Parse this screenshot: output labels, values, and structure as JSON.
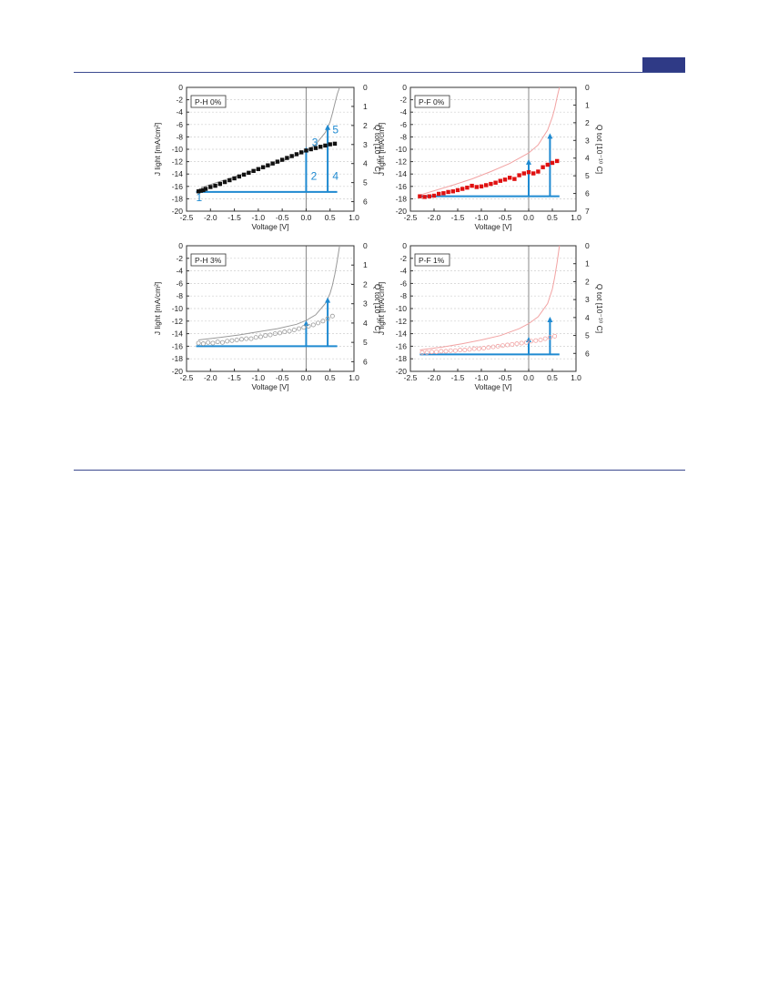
{
  "page": {
    "rule_color": "#3b4a8f",
    "tab_color": "#2f3a86"
  },
  "colors": {
    "axis": "#333333",
    "grid": "#cfcfcf",
    "zero_line": "#888888",
    "arrow": "#1f8ad1",
    "gray_curve": "#9a9a9a",
    "red_curve": "#f2a3a3",
    "black_marker": "#111111",
    "red_marker": "#e01010",
    "open_marker": "#9a9a9a"
  },
  "chart_data": [
    {
      "type": "scatter",
      "panel_label": "P-H 0%",
      "xlabel": "Voltage [V]",
      "ylabel": "J light [mA/cm²]",
      "y2label": "Q tot [10⁻¹⁰ C]",
      "xlim": [
        -2.5,
        1.0
      ],
      "ylim": [
        -20,
        0
      ],
      "y2lim": [
        6.5,
        0
      ],
      "x_ticks": [
        "-2.5",
        "-2.0",
        "-1.5",
        "-1.0",
        "-0.5",
        "0.0",
        "0.5",
        "1.0"
      ],
      "y_ticks": [
        "0",
        "-2",
        "-4",
        "-6",
        "-8",
        "-10",
        "-12",
        "-14",
        "-16",
        "-18",
        "-20"
      ],
      "y2_ticks": [
        "0",
        "1",
        "2",
        "3",
        "4",
        "5",
        "6"
      ],
      "marker": "filled-square",
      "marker_color": "#111111",
      "curve_color": "#9a9a9a",
      "points": {
        "x": [
          -2.25,
          -2.2,
          -2.15,
          -2.1,
          -2.0,
          -1.9,
          -1.8,
          -1.7,
          -1.6,
          -1.5,
          -1.4,
          -1.3,
          -1.2,
          -1.1,
          -1.0,
          -0.9,
          -0.8,
          -0.7,
          -0.6,
          -0.5,
          -0.4,
          -0.3,
          -0.2,
          -0.1,
          0.0,
          0.1,
          0.2,
          0.3,
          0.4,
          0.5,
          0.6
        ],
        "y": [
          -16.8,
          -16.7,
          -16.6,
          -16.4,
          -16.1,
          -15.9,
          -15.6,
          -15.3,
          -15.0,
          -14.7,
          -14.4,
          -14.1,
          -13.8,
          -13.5,
          -13.2,
          -12.9,
          -12.6,
          -12.3,
          -12.0,
          -11.7,
          -11.4,
          -11.1,
          -10.8,
          -10.5,
          -10.2,
          -10.0,
          -9.8,
          -9.6,
          -9.4,
          -9.2,
          -9.1
        ]
      },
      "curve": {
        "x": [
          -2.2,
          -1.8,
          -1.4,
          -1.0,
          -0.6,
          -0.3,
          0.0,
          0.2,
          0.4,
          0.5,
          0.55,
          0.6,
          0.65,
          0.7
        ],
        "y": [
          -16.2,
          -15.2,
          -14.2,
          -13.2,
          -12.2,
          -11.3,
          -10.3,
          -9.2,
          -7.3,
          -5.6,
          -4.2,
          -2.6,
          -1.1,
          0.0
        ]
      },
      "baseline_J": -16.9,
      "arrows": [
        {
          "x": 0.0,
          "y_to": -9.6
        },
        {
          "x": 0.45,
          "y_to": -6.0
        }
      ],
      "annotations": [
        {
          "text": "1",
          "x": -2.3,
          "y": -18.4
        },
        {
          "text": "2",
          "x": 0.1,
          "y": -14.9
        },
        {
          "text": "3",
          "x": 0.12,
          "y": -9.5
        },
        {
          "text": "4",
          "x": 0.55,
          "y": -14.9
        },
        {
          "text": "5",
          "x": 0.55,
          "y": -7.4
        }
      ]
    },
    {
      "type": "scatter",
      "panel_label": "P-F 0%",
      "xlabel": "Voltage [V]",
      "ylabel": "J light [mA/cm²]",
      "y2label": "Q tot [10⁻¹⁰ C]",
      "xlim": [
        -2.5,
        1.0
      ],
      "ylim": [
        -20,
        0
      ],
      "y2lim": [
        7,
        0
      ],
      "x_ticks": [
        "-2.5",
        "-2.0",
        "-1.5",
        "-1.0",
        "-0.5",
        "0.0",
        "0.5",
        "1.0"
      ],
      "y_ticks": [
        "0",
        "-2",
        "-4",
        "-6",
        "-8",
        "-10",
        "-12",
        "-14",
        "-16",
        "-18",
        "-20"
      ],
      "y2_ticks": [
        "0",
        "1",
        "2",
        "3",
        "4",
        "5",
        "6",
        "7"
      ],
      "marker": "filled-square",
      "marker_color": "#e01010",
      "curve_color": "#f2a3a3",
      "points": {
        "x": [
          -2.3,
          -2.2,
          -2.1,
          -2.0,
          -1.9,
          -1.8,
          -1.7,
          -1.6,
          -1.5,
          -1.4,
          -1.3,
          -1.2,
          -1.1,
          -1.0,
          -0.9,
          -0.8,
          -0.7,
          -0.6,
          -0.5,
          -0.4,
          -0.3,
          -0.2,
          -0.1,
          0.0,
          0.1,
          0.2,
          0.3,
          0.4,
          0.5,
          0.6
        ],
        "y": [
          -17.6,
          -17.7,
          -17.6,
          -17.5,
          -17.2,
          -17.1,
          -16.9,
          -16.8,
          -16.6,
          -16.4,
          -16.2,
          -15.9,
          -16.1,
          -16.0,
          -15.8,
          -15.6,
          -15.4,
          -15.1,
          -14.9,
          -14.6,
          -14.8,
          -14.2,
          -13.9,
          -13.7,
          -13.9,
          -13.6,
          -12.9,
          -12.5,
          -12.2,
          -11.9
        ]
      },
      "curve": {
        "x": [
          -2.3,
          -2.0,
          -1.6,
          -1.2,
          -0.8,
          -0.4,
          0.0,
          0.2,
          0.4,
          0.5,
          0.55,
          0.6,
          0.65
        ],
        "y": [
          -17.4,
          -16.7,
          -15.8,
          -14.8,
          -13.6,
          -12.3,
          -10.6,
          -9.3,
          -6.9,
          -4.8,
          -3.4,
          -1.6,
          0.0
        ]
      },
      "baseline_J": -17.6,
      "arrows": [
        {
          "x": 0.0,
          "y_to": -11.6
        },
        {
          "x": 0.45,
          "y_to": -7.4
        }
      ],
      "annotations": []
    },
    {
      "type": "scatter",
      "panel_label": "P-H 3%",
      "xlabel": "Voltage [V]",
      "ylabel": "J light [mA/cm²]",
      "y2label": "Q tot [10⁻¹⁰ C]",
      "xlim": [
        -2.5,
        1.0
      ],
      "ylim": [
        -20,
        0
      ],
      "y2lim": [
        6.5,
        0
      ],
      "x_ticks": [
        "-2.5",
        "-2.0",
        "-1.5",
        "-1.0",
        "-0.5",
        "0.0",
        "0.5",
        "1.0"
      ],
      "y_ticks": [
        "0",
        "-2",
        "-4",
        "-6",
        "-8",
        "-10",
        "-12",
        "-14",
        "-16",
        "-18",
        "-20"
      ],
      "y2_ticks": [
        "0",
        "1",
        "2",
        "3",
        "4",
        "5",
        "6"
      ],
      "marker": "open-circle",
      "marker_color": "#9a9a9a",
      "curve_color": "#9a9a9a",
      "points": {
        "x": [
          -2.25,
          -2.15,
          -2.05,
          -1.95,
          -1.85,
          -1.75,
          -1.65,
          -1.55,
          -1.45,
          -1.35,
          -1.25,
          -1.15,
          -1.05,
          -0.95,
          -0.85,
          -0.75,
          -0.65,
          -0.55,
          -0.45,
          -0.35,
          -0.25,
          -0.15,
          -0.05,
          0.05,
          0.15,
          0.25,
          0.35,
          0.45,
          0.55
        ],
        "y": [
          -15.5,
          -15.6,
          -15.4,
          -15.5,
          -15.3,
          -15.4,
          -15.2,
          -15.1,
          -15.0,
          -14.9,
          -14.8,
          -14.8,
          -14.6,
          -14.5,
          -14.3,
          -14.2,
          -14.0,
          -13.9,
          -13.7,
          -13.6,
          -13.4,
          -13.2,
          -13.0,
          -12.8,
          -12.6,
          -12.3,
          -12.0,
          -11.6,
          -11.2
        ]
      },
      "curve": {
        "x": [
          -2.25,
          -1.8,
          -1.4,
          -1.0,
          -0.6,
          -0.2,
          0.0,
          0.2,
          0.4,
          0.5,
          0.55,
          0.6,
          0.65,
          0.7
        ],
        "y": [
          -15.0,
          -14.6,
          -14.2,
          -13.7,
          -13.2,
          -12.5,
          -11.9,
          -11.0,
          -9.2,
          -7.6,
          -6.3,
          -4.5,
          -2.4,
          0.0
        ]
      },
      "baseline_J": -16.0,
      "arrows": [
        {
          "x": 0.0,
          "y_to": -11.9
        },
        {
          "x": 0.45,
          "y_to": -8.2
        }
      ],
      "annotations": []
    },
    {
      "type": "scatter",
      "panel_label": "P-F 1%",
      "xlabel": "Voltage [V]",
      "ylabel": "J light [mA/cm²]",
      "y2label": "Q tot [10⁻¹⁰ C]",
      "xlim": [
        -2.5,
        1.0
      ],
      "ylim": [
        -20,
        0
      ],
      "y2lim": [
        7,
        0
      ],
      "x_ticks": [
        "-2.5",
        "-2.0",
        "-1.5",
        "-1.0",
        "-0.5",
        "0.0",
        "0.5",
        "1.0"
      ],
      "y_ticks": [
        "0",
        "-2",
        "-4",
        "-6",
        "-8",
        "-10",
        "-12",
        "-14",
        "-16",
        "-18",
        "-20"
      ],
      "y2_ticks": [
        "0",
        "1",
        "2",
        "3",
        "4",
        "5",
        "6"
      ],
      "marker": "open-circle",
      "marker_color": "#f2a3a3",
      "curve_color": "#f2a3a3",
      "points": {
        "x": [
          -2.25,
          -2.15,
          -2.05,
          -1.95,
          -1.85,
          -1.75,
          -1.65,
          -1.55,
          -1.45,
          -1.35,
          -1.25,
          -1.15,
          -1.05,
          -0.95,
          -0.85,
          -0.75,
          -0.65,
          -0.55,
          -0.45,
          -0.35,
          -0.25,
          -0.15,
          -0.05,
          0.05,
          0.15,
          0.25,
          0.35,
          0.45,
          0.55
        ],
        "y": [
          -17.0,
          -17.0,
          -16.9,
          -16.9,
          -16.8,
          -16.8,
          -16.7,
          -16.7,
          -16.6,
          -16.6,
          -16.5,
          -16.4,
          -16.4,
          -16.3,
          -16.2,
          -16.1,
          -16.0,
          -15.9,
          -15.8,
          -15.7,
          -15.6,
          -15.5,
          -15.4,
          -15.2,
          -15.1,
          -15.0,
          -14.8,
          -14.6,
          -14.4
        ]
      },
      "curve": {
        "x": [
          -2.3,
          -1.8,
          -1.4,
          -1.0,
          -0.6,
          -0.2,
          0.0,
          0.2,
          0.4,
          0.5,
          0.55,
          0.6,
          0.65
        ],
        "y": [
          -16.6,
          -16.1,
          -15.6,
          -15.0,
          -14.3,
          -13.2,
          -12.4,
          -11.3,
          -9.2,
          -6.9,
          -5.0,
          -2.7,
          0.0
        ]
      },
      "baseline_J": -17.3,
      "arrows": [
        {
          "x": 0.0,
          "y_to": -14.5
        },
        {
          "x": 0.45,
          "y_to": -11.3
        }
      ],
      "annotations": []
    }
  ]
}
